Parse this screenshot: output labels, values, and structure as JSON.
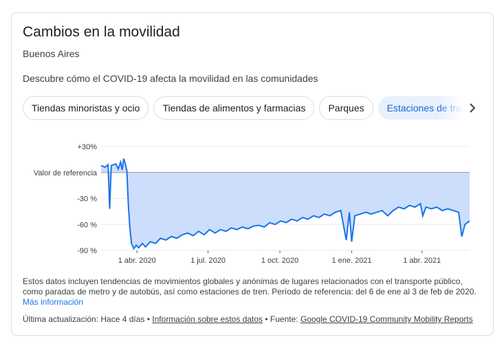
{
  "card": {
    "title": "Cambios en la movilidad",
    "location": "Buenos Aires",
    "description": "Descubre cómo el COVID-19 afecta la movilidad en las comunidades"
  },
  "chips": [
    {
      "label": "Tiendas minoristas y ocio",
      "selected": false
    },
    {
      "label": "Tiendas de alimentos y farmacias",
      "selected": false
    },
    {
      "label": "Parques",
      "selected": false
    },
    {
      "label": "Estaciones de transporte",
      "selected": true
    }
  ],
  "next_icon": "chevron-right-icon",
  "chart_data": {
    "type": "area",
    "y_ticks": [
      "+30%",
      "Valor de referencia",
      "-30 %",
      "-60 %",
      "-90 %"
    ],
    "y_tick_values": [
      30,
      0,
      -30,
      -60,
      -90
    ],
    "ylim": [
      -90,
      30
    ],
    "x_ticks": [
      "1 abr. 2020",
      "1 jul. 2020",
      "1 oct. 2020",
      "1 ene. 2021",
      "1 abr. 2021"
    ],
    "x_tick_dates": [
      "2020-04-01",
      "2020-07-01",
      "2020-10-01",
      "2021-01-01",
      "2021-04-01"
    ],
    "x_range": [
      "2020-02-15",
      "2021-06-01"
    ],
    "series": [
      {
        "color": "#1a73e8",
        "fill": "#c6dafc",
        "points": [
          [
            "2020-02-15",
            8
          ],
          [
            "2020-02-20",
            6
          ],
          [
            "2020-02-24",
            9
          ],
          [
            "2020-02-26",
            -42
          ],
          [
            "2020-02-28",
            8
          ],
          [
            "2020-03-05",
            10
          ],
          [
            "2020-03-08",
            4
          ],
          [
            "2020-03-11",
            12
          ],
          [
            "2020-03-13",
            3
          ],
          [
            "2020-03-15",
            16
          ],
          [
            "2020-03-17",
            10
          ],
          [
            "2020-03-19",
            2
          ],
          [
            "2020-03-21",
            -38
          ],
          [
            "2020-03-23",
            -65
          ],
          [
            "2020-03-25",
            -82
          ],
          [
            "2020-03-28",
            -88
          ],
          [
            "2020-03-31",
            -84
          ],
          [
            "2020-04-03",
            -87
          ],
          [
            "2020-04-08",
            -82
          ],
          [
            "2020-04-12",
            -86
          ],
          [
            "2020-04-18",
            -80
          ],
          [
            "2020-04-25",
            -82
          ],
          [
            "2020-05-01",
            -76
          ],
          [
            "2020-05-08",
            -78
          ],
          [
            "2020-05-15",
            -74
          ],
          [
            "2020-05-22",
            -76
          ],
          [
            "2020-05-29",
            -72
          ],
          [
            "2020-06-05",
            -70
          ],
          [
            "2020-06-12",
            -73
          ],
          [
            "2020-06-19",
            -68
          ],
          [
            "2020-06-26",
            -72
          ],
          [
            "2020-07-03",
            -66
          ],
          [
            "2020-07-10",
            -70
          ],
          [
            "2020-07-17",
            -66
          ],
          [
            "2020-07-24",
            -68
          ],
          [
            "2020-07-31",
            -64
          ],
          [
            "2020-08-07",
            -66
          ],
          [
            "2020-08-14",
            -63
          ],
          [
            "2020-08-21",
            -65
          ],
          [
            "2020-08-28",
            -62
          ],
          [
            "2020-09-04",
            -61
          ],
          [
            "2020-09-11",
            -63
          ],
          [
            "2020-09-18",
            -58
          ],
          [
            "2020-09-25",
            -60
          ],
          [
            "2020-10-02",
            -56
          ],
          [
            "2020-10-09",
            -58
          ],
          [
            "2020-10-16",
            -54
          ],
          [
            "2020-10-23",
            -56
          ],
          [
            "2020-10-30",
            -52
          ],
          [
            "2020-11-06",
            -54
          ],
          [
            "2020-11-13",
            -50
          ],
          [
            "2020-11-20",
            -52
          ],
          [
            "2020-11-27",
            -48
          ],
          [
            "2020-12-04",
            -50
          ],
          [
            "2020-12-11",
            -46
          ],
          [
            "2020-12-18",
            -44
          ],
          [
            "2020-12-25",
            -78
          ],
          [
            "2020-12-29",
            -46
          ],
          [
            "2021-01-01",
            -80
          ],
          [
            "2021-01-05",
            -50
          ],
          [
            "2021-01-12",
            -48
          ],
          [
            "2021-01-19",
            -46
          ],
          [
            "2021-01-26",
            -48
          ],
          [
            "2021-02-02",
            -46
          ],
          [
            "2021-02-09",
            -44
          ],
          [
            "2021-02-16",
            -50
          ],
          [
            "2021-02-23",
            -44
          ],
          [
            "2021-03-02",
            -40
          ],
          [
            "2021-03-09",
            -42
          ],
          [
            "2021-03-16",
            -38
          ],
          [
            "2021-03-23",
            -40
          ],
          [
            "2021-03-30",
            -36
          ],
          [
            "2021-04-02",
            -50
          ],
          [
            "2021-04-06",
            -40
          ],
          [
            "2021-04-13",
            -42
          ],
          [
            "2021-04-20",
            -40
          ],
          [
            "2021-04-27",
            -44
          ],
          [
            "2021-05-04",
            -42
          ],
          [
            "2021-05-11",
            -44
          ],
          [
            "2021-05-18",
            -46
          ],
          [
            "2021-05-22",
            -74
          ],
          [
            "2021-05-26",
            -60
          ],
          [
            "2021-06-01",
            -56
          ]
        ]
      }
    ],
    "grid": true
  },
  "footer": {
    "text": "Estos datos incluyen tendencias de movimientos globales y anónimas de lugares relacionados con el transporte público, como paradas de metro y de autobús, así como estaciones de tren. Período de referencia: del 6 de ene al 3 de feb de 2020.",
    "more_link": "Más información",
    "updated_prefix": "Última actualización: Hace 4 días • ",
    "about_link": "Información sobre estos datos",
    "source_prefix": " • Fuente: ",
    "source_link": "Google COVID-19 Community Mobility Reports"
  }
}
